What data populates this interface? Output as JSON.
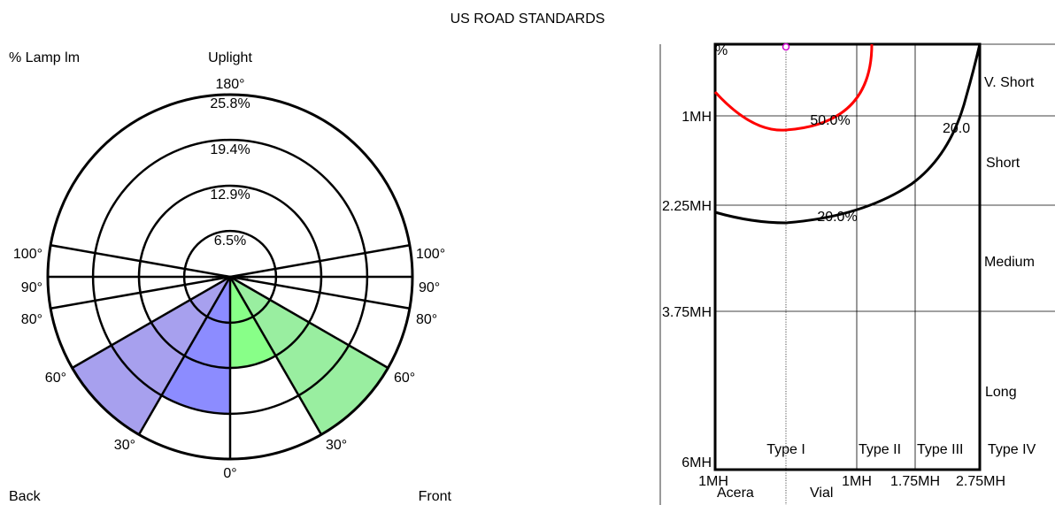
{
  "title": "US ROAD STANDARDS",
  "polar": {
    "unit_label": "% Lamp lm",
    "top_label": "Uplight",
    "back_label": "Back",
    "front_label": "Front",
    "ring_labels": [
      "6.5%",
      "12.9%",
      "19.4%",
      "25.8%"
    ],
    "ring_values": [
      6.5,
      12.9,
      19.4,
      25.8
    ],
    "angle_labels": {
      "a0": "0°",
      "a30": "30°",
      "a60": "60°",
      "a80": "80°",
      "a90": "90°",
      "a100": "100°",
      "a180": "180°"
    },
    "zones": [
      {
        "side": "back",
        "from_deg": 0,
        "to_deg": 30,
        "pct": 19.4,
        "color": "#8c8cff"
      },
      {
        "side": "back",
        "from_deg": 30,
        "to_deg": 60,
        "pct": 25.8,
        "color": "#a7a0ee"
      },
      {
        "side": "back",
        "from_deg": 60,
        "to_deg": 80,
        "pct": 0,
        "color": "#a7a0ee"
      },
      {
        "side": "back",
        "from_deg": 80,
        "to_deg": 90,
        "pct": 2.5,
        "color": "#bdbdbd"
      },
      {
        "side": "front",
        "from_deg": 0,
        "to_deg": 30,
        "pct": 12.9,
        "color": "#88ff88"
      },
      {
        "side": "front",
        "from_deg": 30,
        "to_deg": 60,
        "pct": 25.8,
        "color": "#99eea0"
      },
      {
        "side": "front",
        "from_deg": 60,
        "to_deg": 80,
        "pct": 0,
        "color": "#99eea0"
      },
      {
        "side": "front",
        "from_deg": 80,
        "to_deg": 90,
        "pct": 2.5,
        "color": "#bdbdbd"
      }
    ]
  },
  "isolux": {
    "y_labels": [
      "1MH",
      "2.25MH",
      "3.75MH",
      "6MH"
    ],
    "y_values": [
      1,
      2.25,
      3.75,
      6
    ],
    "x_labels": [
      "1MH",
      "1MH",
      "1.75MH",
      "2.75MH"
    ],
    "x_values": [
      -1,
      1,
      1.75,
      2.75
    ],
    "right_labels": [
      "V. Short",
      "Short",
      "Medium",
      "Long"
    ],
    "type_labels": [
      "Type I",
      "Type II",
      "Type III",
      "Type IV"
    ],
    "bottom_labels": [
      "Acera",
      "Vial"
    ],
    "contours": [
      {
        "label": "50.0%",
        "color": "#ff0000",
        "value": 50.0
      },
      {
        "label": "20.0%",
        "color": "#000000",
        "value": 20.0
      }
    ],
    "corner_label_fragment": "20.0",
    "topleft_fragment": "%"
  }
}
